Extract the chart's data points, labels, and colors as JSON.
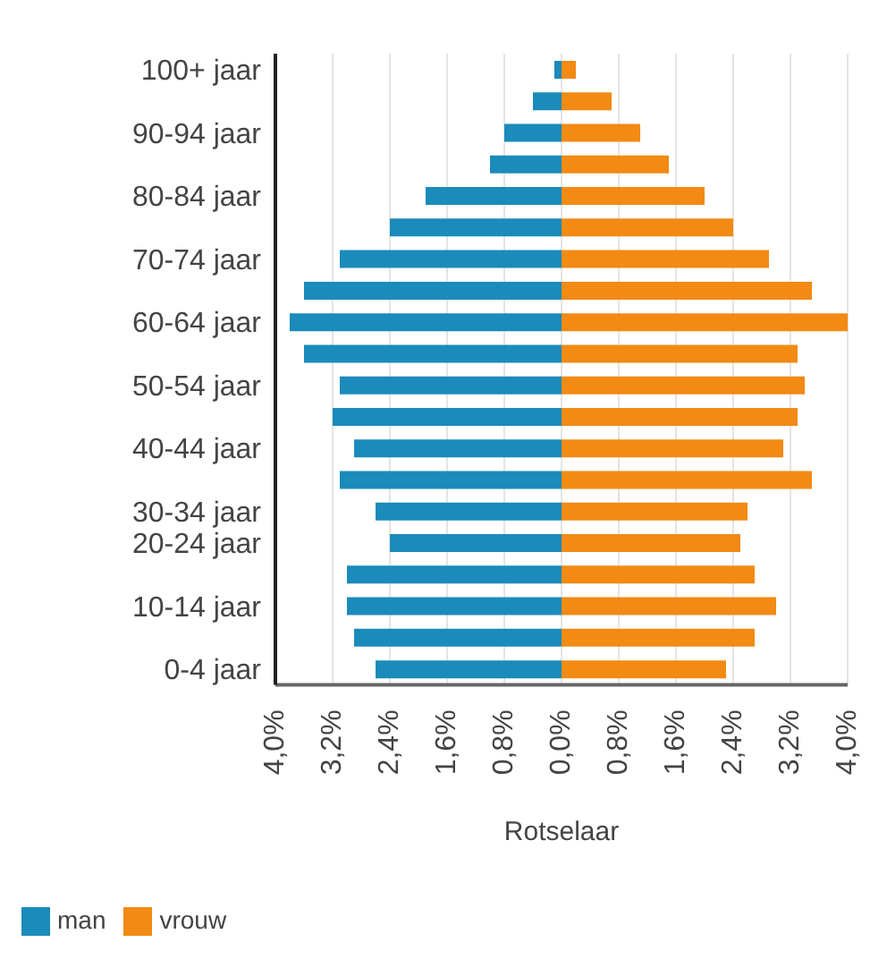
{
  "chart_data": {
    "type": "bar",
    "orientation": "horizontal",
    "stacked": true,
    "xlabel": "Rotselaar",
    "categories": [
      "100+ jaar",
      null,
      "90-94 jaar",
      null,
      "80-84 jaar",
      null,
      "70-74 jaar",
      null,
      "60-64 jaar",
      null,
      "50-54 jaar",
      null,
      "40-44 jaar",
      null,
      "30-34 jaar",
      "20-24 jaar",
      null,
      "10-14 jaar",
      null,
      "0-4 jaar"
    ],
    "series": [
      {
        "name": "man",
        "color": "#1a8bba",
        "values": [
          -0.1,
          -0.4,
          -0.8,
          -1.0,
          -1.9,
          -2.4,
          -3.1,
          -3.6,
          -3.8,
          -3.6,
          -3.1,
          -3.2,
          -2.9,
          -3.1,
          -2.6,
          -2.4,
          -3.0,
          -3.0,
          -2.9,
          -2.6
        ]
      },
      {
        "name": "vrouw",
        "color": "#f28a14",
        "values": [
          0.2,
          0.7,
          1.1,
          1.5,
          2.0,
          2.4,
          2.9,
          3.5,
          4.0,
          3.3,
          3.4,
          3.3,
          3.1,
          3.5,
          2.6,
          2.5,
          2.7,
          3.0,
          2.7,
          2.3
        ]
      }
    ],
    "xlim": [
      -4,
      4
    ],
    "xticks": [
      {
        "value": -4,
        "label": "4,0%"
      },
      {
        "value": -3.2,
        "label": "3,2%"
      },
      {
        "value": -2.4,
        "label": "2,4%"
      },
      {
        "value": -1.6,
        "label": "1,6%"
      },
      {
        "value": -0.8,
        "label": "0,8%"
      },
      {
        "value": 0,
        "label": "0,0%"
      },
      {
        "value": 0.8,
        "label": "0,8%"
      },
      {
        "value": 1.6,
        "label": "1,6%"
      },
      {
        "value": 2.4,
        "label": "2,4%"
      },
      {
        "value": 3.2,
        "label": "3,2%"
      },
      {
        "value": 4,
        "label": "4,0%"
      }
    ],
    "grid": "x",
    "legend": "bottom left"
  }
}
